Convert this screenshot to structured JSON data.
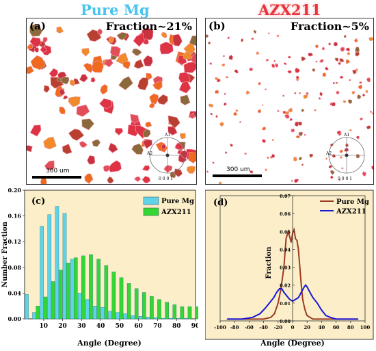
{
  "panel_a": {
    "title": "Pure Mg",
    "label": "(a)",
    "fraction_text": "Fraction~21%",
    "scale_text": "300 um",
    "ipf_labels": {
      "top": "A1",
      "left": "A2",
      "bottom": "0 0 0 1"
    }
  },
  "panel_b": {
    "title": "AZX211",
    "label": "(b)",
    "fraction_text": "Fraction~5%",
    "scale_text": "300 um",
    "ipf_labels": {
      "top": "A1",
      "left": "A2",
      "bottom": "0 0 0 1"
    }
  },
  "colors": {
    "pure_mg_bar": "#5fd3ea",
    "azx211_bar": "#33d633",
    "pure_mg_line": "#9b3a22",
    "azx211_line": "#1616d8",
    "chart_bg": "#fbeec8",
    "grain_red": "#dd3344",
    "grain_orange": "#ef6a1e"
  },
  "chart_data": [
    {
      "type": "bar",
      "panel_label": "(c)",
      "xlabel": "Angle (Degree)",
      "ylabel": "Number Fraction",
      "xlim": [
        0,
        90
      ],
      "ylim": [
        0,
        0.2
      ],
      "xticks": [
        10,
        20,
        30,
        40,
        50,
        60,
        70,
        80,
        90
      ],
      "yticks": [
        0.0,
        0.04,
        0.08,
        0.12,
        0.16,
        0.2
      ],
      "ytick_labels": [
        "0.00",
        "0.04",
        "0.08",
        "0.12",
        "0.16",
        "0.20"
      ],
      "legend_placement": "top-right",
      "series": [
        {
          "name": "Pure Mg",
          "x": [
            2,
            6,
            10,
            14,
            18,
            22,
            26,
            30,
            34,
            38,
            42,
            46,
            50,
            54,
            58,
            62,
            66,
            70,
            74,
            78,
            82,
            86,
            90
          ],
          "values": [
            0.038,
            0.01,
            0.144,
            0.162,
            0.175,
            0.164,
            0.093,
            0.04,
            0.03,
            0.02,
            0.018,
            0.012,
            0.01,
            0.008,
            0.005,
            0.004,
            0.003,
            0.002,
            0.001,
            0.001,
            0.001,
            0.001,
            0.0
          ]
        },
        {
          "name": "AZX211",
          "x": [
            2,
            6,
            10,
            14,
            18,
            22,
            26,
            30,
            34,
            38,
            42,
            46,
            50,
            54,
            58,
            62,
            66,
            70,
            74,
            78,
            82,
            86,
            90
          ],
          "values": [
            0.0,
            0.02,
            0.034,
            0.058,
            0.076,
            0.087,
            0.095,
            0.098,
            0.1,
            0.093,
            0.083,
            0.073,
            0.064,
            0.055,
            0.047,
            0.041,
            0.035,
            0.03,
            0.026,
            0.022,
            0.019,
            0.019,
            0.019
          ]
        }
      ]
    },
    {
      "type": "line",
      "panel_label": "(d)",
      "xlabel": "Angle (Degree)",
      "ylabel": "Fraction",
      "xlim": [
        -100,
        100
      ],
      "ylim": [
        0,
        0.07
      ],
      "xticks": [
        -100,
        -80,
        -60,
        -40,
        -20,
        0,
        20,
        40,
        60,
        80,
        100
      ],
      "yticks": [
        0.0,
        0.01,
        0.02,
        0.03,
        0.04,
        0.05,
        0.06,
        0.07
      ],
      "ytick_labels": [
        "0.00",
        "0.01",
        "0.02",
        "0.03",
        "0.04",
        "0.05",
        "0.06",
        "0.07"
      ],
      "legend_placement": "top-right",
      "series": [
        {
          "name": "Pure Mg",
          "x": [
            -90,
            -70,
            -50,
            -40,
            -30,
            -25,
            -20,
            -16,
            -12,
            -9,
            -6,
            -4,
            -2,
            0,
            2,
            4,
            6,
            8,
            10,
            12,
            14,
            16,
            18,
            20,
            24,
            28,
            35,
            50,
            70,
            90
          ],
          "values": [
            0.001,
            0.001,
            0.001,
            0.001,
            0.002,
            0.004,
            0.01,
            0.018,
            0.03,
            0.046,
            0.05,
            0.047,
            0.044,
            0.049,
            0.051,
            0.046,
            0.045,
            0.04,
            0.03,
            0.02,
            0.012,
            0.008,
            0.005,
            0.003,
            0.002,
            0.001,
            0.001,
            0.001,
            0.001,
            0.001
          ]
        },
        {
          "name": "AZX211",
          "x": [
            -90,
            -70,
            -55,
            -45,
            -38,
            -32,
            -26,
            -22,
            -18,
            -15,
            -12,
            -8,
            -4,
            0,
            4,
            8,
            12,
            16,
            18,
            20,
            24,
            28,
            34,
            40,
            46,
            52,
            60,
            70,
            80,
            90
          ],
          "values": [
            0.001,
            0.001,
            0.002,
            0.004,
            0.007,
            0.01,
            0.013,
            0.016,
            0.018,
            0.018,
            0.016,
            0.014,
            0.012,
            0.011,
            0.012,
            0.013,
            0.016,
            0.019,
            0.02,
            0.019,
            0.016,
            0.013,
            0.01,
            0.006,
            0.003,
            0.002,
            0.001,
            0.001,
            0.001,
            0.001
          ]
        }
      ]
    }
  ]
}
